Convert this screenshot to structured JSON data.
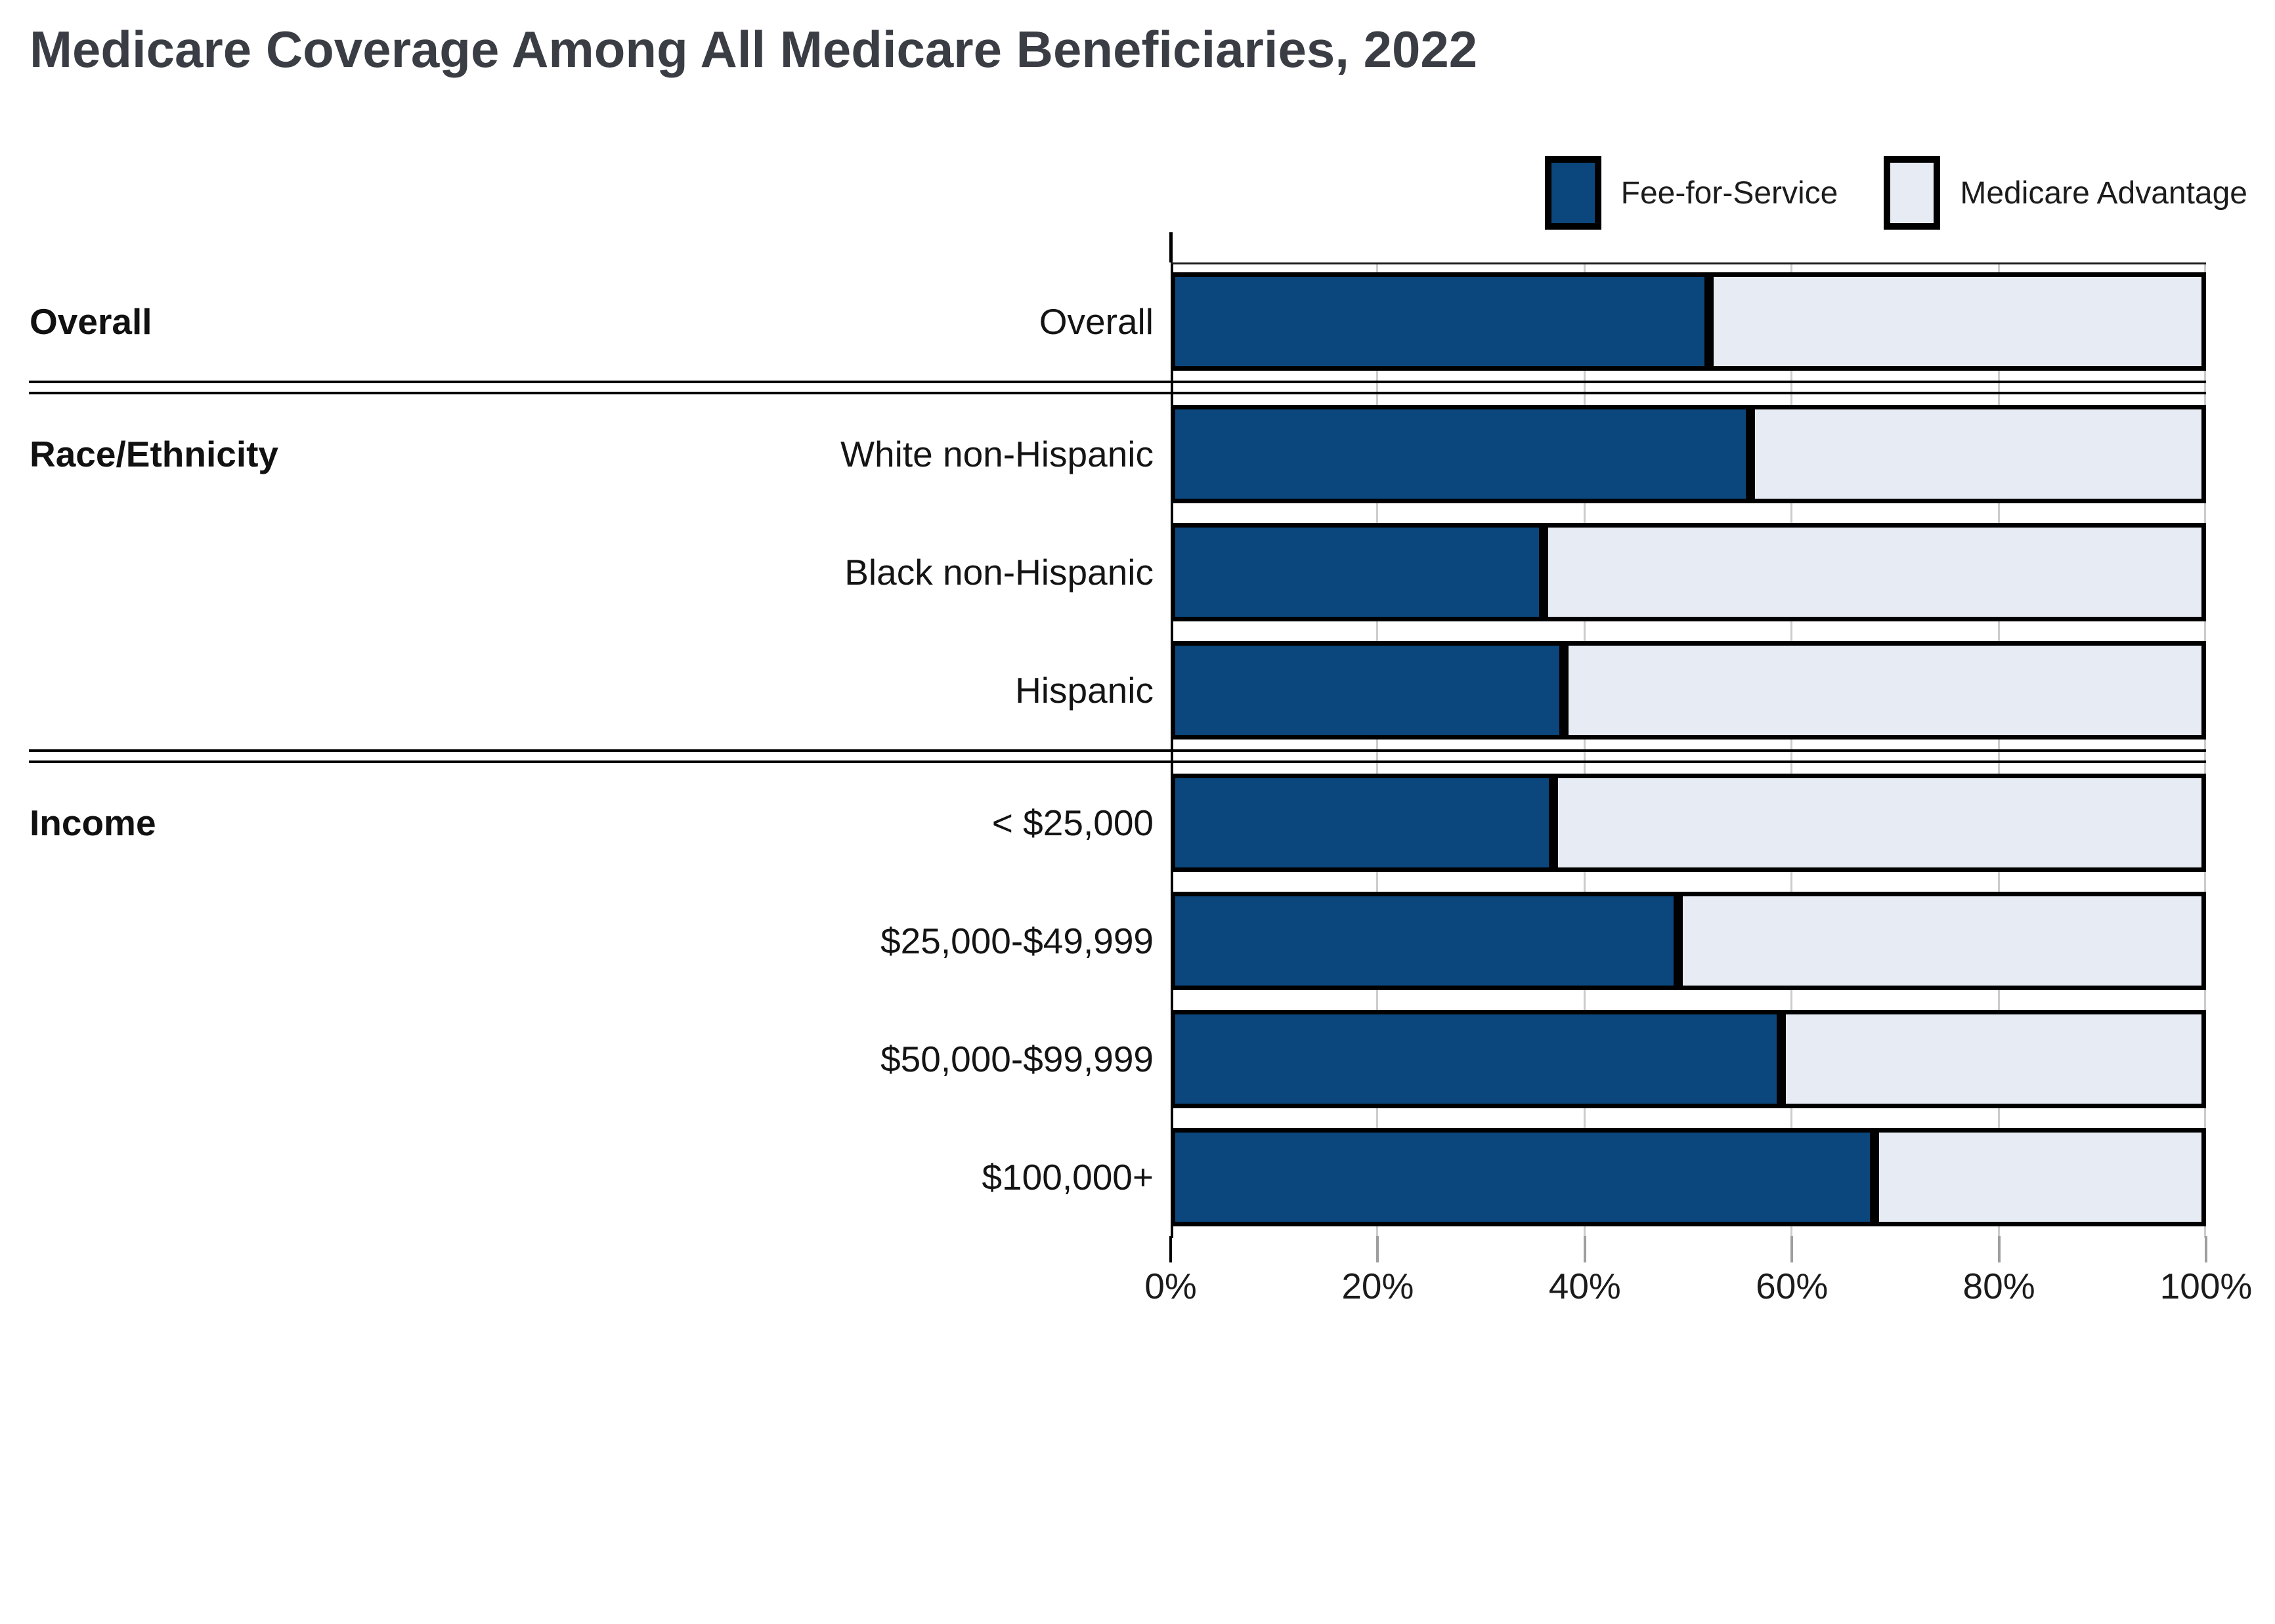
{
  "title": "Medicare Coverage Among All Medicare Beneficiaries, 2022",
  "legend": {
    "items": [
      {
        "label": "Fee-for-Service",
        "color": "#0B467C"
      },
      {
        "label": "Medicare Advantage",
        "color": "#E7EBF4"
      }
    ]
  },
  "sections": [
    {
      "label": "Overall"
    },
    {
      "label": "Race/Ethnicity"
    },
    {
      "label": "Income"
    }
  ],
  "colors": {
    "fee_for_service": "#0B467C",
    "medicare_advantage": "#E7EBF4",
    "bar_border": "#000000",
    "gridline": "#CCCCCC",
    "title_text": "#3A3E44"
  },
  "chart_data": {
    "type": "bar",
    "orientation": "horizontal",
    "stacked": true,
    "title": "Medicare Coverage Among All Medicare Beneficiaries, 2022",
    "categories": [
      "Overall",
      "White non-Hispanic",
      "Black non-Hispanic",
      "Hispanic",
      "< $25,000",
      "$25,000-$49,999",
      "$50,000-$99,999",
      "$100,000+"
    ],
    "groups": [
      {
        "label": "Overall",
        "categories": [
          "Overall"
        ]
      },
      {
        "label": "Race/Ethnicity",
        "categories": [
          "White non-Hispanic",
          "Black non-Hispanic",
          "Hispanic"
        ]
      },
      {
        "label": "Income",
        "categories": [
          "< $25,000",
          "$25,000-$49,999",
          "$50,000-$99,999",
          "$100,000+"
        ]
      }
    ],
    "series": [
      {
        "name": "Fee-for-Service",
        "color": "#0B467C",
        "values": [
          52,
          56,
          36,
          38,
          37,
          49,
          59,
          68
        ]
      },
      {
        "name": "Medicare Advantage",
        "color": "#E7EBF4",
        "values": [
          48,
          44,
          64,
          62,
          63,
          51,
          41,
          32
        ]
      }
    ],
    "xlim": [
      0,
      100
    ],
    "x_tick_labels": [
      "0%",
      "20%",
      "40%",
      "60%",
      "80%",
      "100%"
    ],
    "unit": "percent",
    "grid": true,
    "legend_position": "top-right"
  }
}
